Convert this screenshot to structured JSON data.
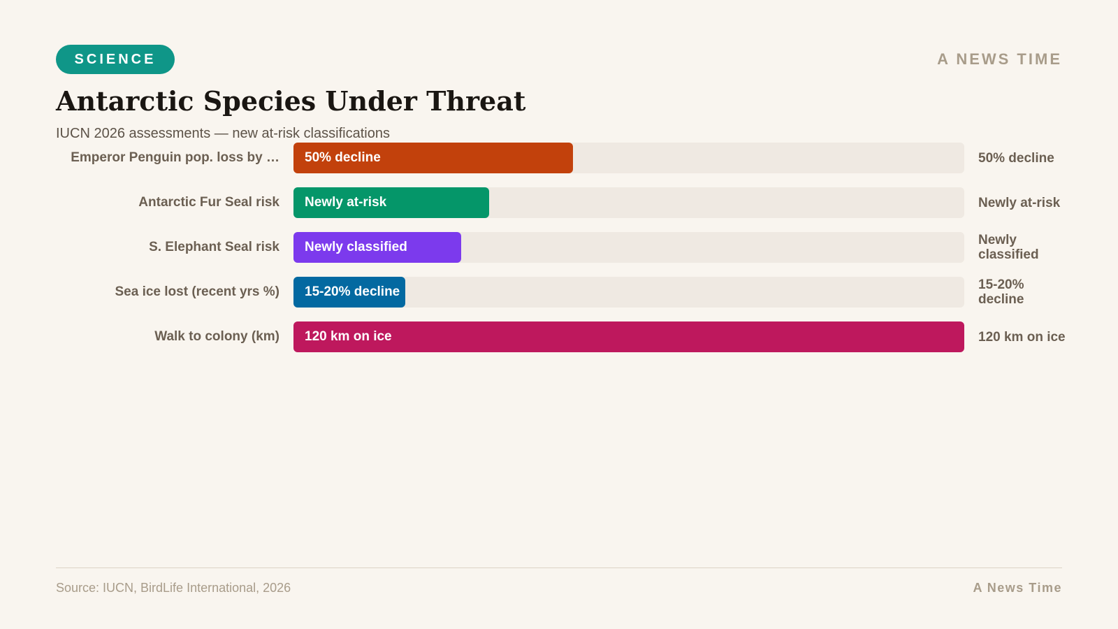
{
  "header": {
    "tag": "SCIENCE",
    "brand": "A NEWS TIME"
  },
  "chart_data": {
    "type": "bar",
    "orientation": "horizontal",
    "title": "Antarctic Species Under Threat",
    "subtitle": "IUCN 2026 assessments — new at-risk classifications",
    "categories": [
      "Emperor Penguin pop. loss by …",
      "Antarctic Fur Seal risk",
      "S. Elephant Seal risk",
      "Sea ice lost (recent yrs %)",
      "Walk to colony (km)"
    ],
    "values": [
      50,
      35,
      30,
      20,
      120
    ],
    "value_labels": [
      "50% decline",
      "Newly at-risk",
      "Newly classified",
      "15-20% decline",
      "120 km on ice"
    ],
    "colors": [
      "#c2410c",
      "#059669",
      "#7c3aed",
      "#0369a1",
      "#be185d"
    ],
    "xlim": [
      0,
      120
    ]
  },
  "footer": {
    "source": "Source: IUCN, BirdLife International, 2026",
    "brand": "A News Time"
  }
}
